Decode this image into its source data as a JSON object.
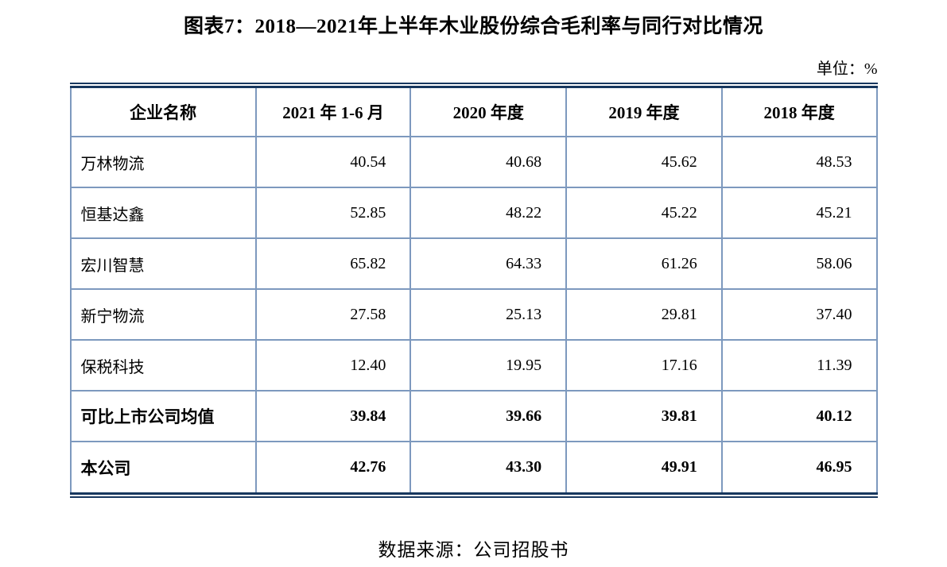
{
  "page": {
    "title": "图表7：2018—2021年上半年木业股份综合毛利率与同行对比情况",
    "unit_label": "单位：%",
    "source_note": "数据来源：公司招股书"
  },
  "chart_data": {
    "type": "table",
    "title": "2018—2021年上半年木业股份综合毛利率与同行对比情况",
    "figure_number": "图表7",
    "unit": "%",
    "columns": [
      "企业名称",
      "2021 年 1-6 月",
      "2020 年度",
      "2019 年度",
      "2018 年度"
    ],
    "rows": [
      {
        "name": "万林物流",
        "values": [
          "40.54",
          "40.68",
          "45.62",
          "48.53"
        ],
        "bold": false
      },
      {
        "name": "恒基达鑫",
        "values": [
          "52.85",
          "48.22",
          "45.22",
          "45.21"
        ],
        "bold": false
      },
      {
        "name": "宏川智慧",
        "values": [
          "65.82",
          "64.33",
          "61.26",
          "58.06"
        ],
        "bold": false
      },
      {
        "name": "新宁物流",
        "values": [
          "27.58",
          "25.13",
          "29.81",
          "37.40"
        ],
        "bold": false
      },
      {
        "name": "保税科技",
        "values": [
          "12.40",
          "19.95",
          "17.16",
          "11.39"
        ],
        "bold": false
      },
      {
        "name": "可比上市公司均值",
        "values": [
          "39.84",
          "39.66",
          "39.81",
          "40.12"
        ],
        "bold": true
      },
      {
        "name": "本公司",
        "values": [
          "42.76",
          "43.30",
          "49.91",
          "46.95"
        ],
        "bold": true
      }
    ]
  },
  "colors": {
    "outer_rule": "#17375E",
    "grid_line": "#7D99BE",
    "text": "#000000",
    "background": "#FFFFFF"
  }
}
